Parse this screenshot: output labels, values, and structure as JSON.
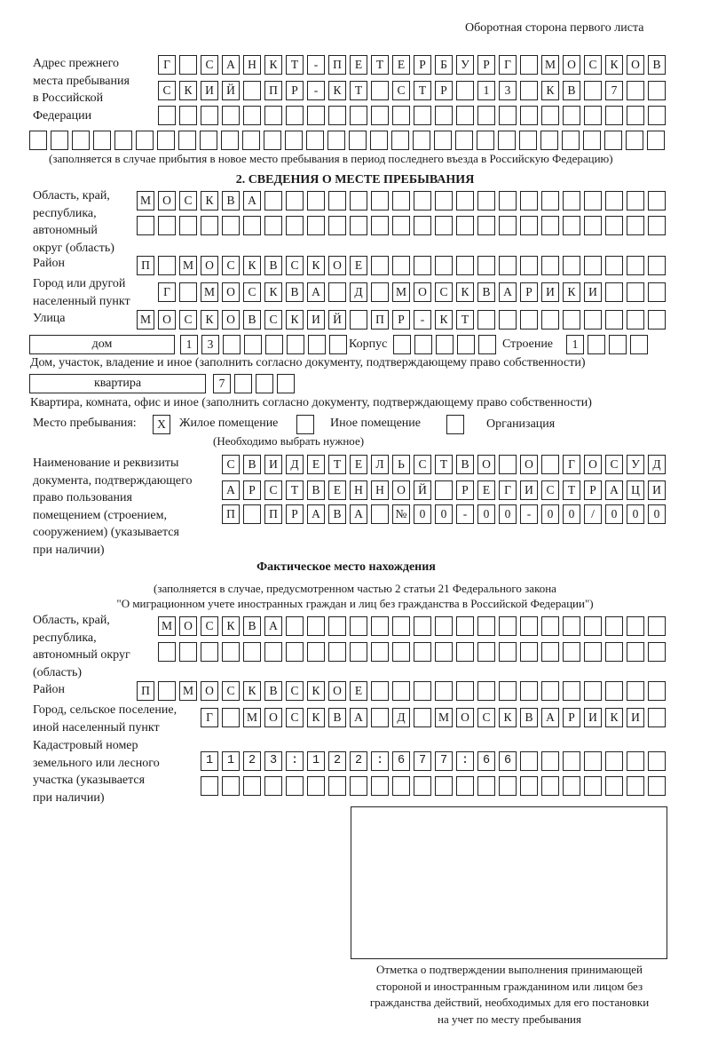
{
  "header": "Оборотная сторона первого листа",
  "prev_address": {
    "label": "Адрес прежнего\nместа пребывания\nв Российской\nФедерации",
    "rows": [
      "Г САНКТ-ПЕТЕРБУРГ МОСКОВ",
      "СКИЙ ПР-КТ СТР 13 КВ 7",
      "",
      ""
    ],
    "note": "(заполняется в случае прибытия в новое место пребывания в период последнего въезда в Российскую Федерацию)"
  },
  "section2": {
    "title": "2. СВЕДЕНИЯ О МЕСТЕ ПРЕБЫВАНИЯ",
    "region_label": "Область, край,\nреспублика,\nавтономный\nокруг (область)",
    "region_rows": [
      "МОСКВА",
      ""
    ],
    "district_label": "Район",
    "district": "П МОСКВСКОЕ",
    "city_label": "Город или другой\nнаселенный пункт",
    "city": "Г МОСКВА Д МОСКВАРИКИ",
    "street_label": "Улица",
    "street": "МОСКОВСКИЙ ПР-КТ",
    "house_type": "дом",
    "house": "13",
    "korpus_label": "Корпус",
    "korpus": "",
    "building_label": "Строение",
    "building": "1",
    "house_note": "Дом, участок, владение и иное (заполнить согласно документу, подтверждающему право собственности)",
    "apt_type": "квартира",
    "apt": "7",
    "apt_note": "Квартира, комната, офис и иное (заполнить согласно документу, подтверждающему право собственности)",
    "place_label": "Место пребывания:",
    "place_options": [
      {
        "label": "Жилое помещение",
        "mark": "X"
      },
      {
        "label": "Иное помещение",
        "mark": ""
      },
      {
        "label": "Организация",
        "mark": ""
      }
    ],
    "place_note": "(Необходимо выбрать нужное)",
    "doc_label": "Наименование и реквизиты\nдокумента, подтверждающего\nправо пользования\nпомещением (строением,\nсооружением) (указывается\nпри наличии)",
    "doc_rows": [
      "СВИДЕТЕЛЬСТВО О ГОСУД",
      "АРСТВЕННОЙ РЕГИСТРАЦИ",
      "П ПРАВА №00-00-00/000"
    ]
  },
  "actual": {
    "title": "Фактическое место нахождения",
    "subtitle1": "(заполняется в случае, предусмотренном частью 2 статьи 21 Федерального закона",
    "subtitle2": "\"О миграционном учете иностранных граждан и лиц без гражданства в Российской Федерации\")",
    "region_label": "Область, край,\nреспублика,\nавтономный округ\n(область)",
    "region_rows": [
      "МОСКВА",
      ""
    ],
    "district_label": "Район",
    "district": "П МОСКВСКОЕ",
    "city_label": "Город, сельское поселение,\nиной населенный пункт",
    "city": "Г МОСКВА Д МОСКВАРИКИ",
    "cadastre_label": "Кадастровый номер\nземельного или лесного\nучастка (указывается\nпри наличии)",
    "cadastre_rows": [
      "1123:122:677:66",
      ""
    ]
  },
  "stamp_caption": [
    "Отметка о подтверждении выполнения принимающей",
    "стороной и иностранным гражданином или лицом без",
    "гражданства действий, необходимых для его постановки",
    "на учет по месту пребывания"
  ]
}
